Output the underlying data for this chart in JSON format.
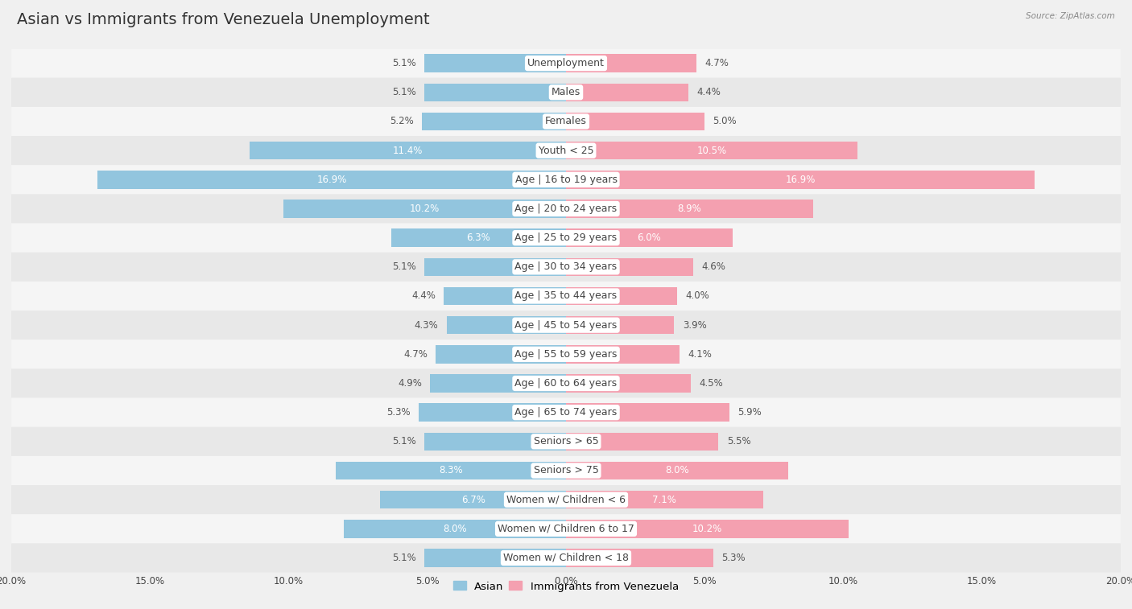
{
  "title": "Asian vs Immigrants from Venezuela Unemployment",
  "source": "Source: ZipAtlas.com",
  "categories": [
    "Unemployment",
    "Males",
    "Females",
    "Youth < 25",
    "Age | 16 to 19 years",
    "Age | 20 to 24 years",
    "Age | 25 to 29 years",
    "Age | 30 to 34 years",
    "Age | 35 to 44 years",
    "Age | 45 to 54 years",
    "Age | 55 to 59 years",
    "Age | 60 to 64 years",
    "Age | 65 to 74 years",
    "Seniors > 65",
    "Seniors > 75",
    "Women w/ Children < 6",
    "Women w/ Children 6 to 17",
    "Women w/ Children < 18"
  ],
  "asian_values": [
    5.1,
    5.1,
    5.2,
    11.4,
    16.9,
    10.2,
    6.3,
    5.1,
    4.4,
    4.3,
    4.7,
    4.9,
    5.3,
    5.1,
    8.3,
    6.7,
    8.0,
    5.1
  ],
  "venezuela_values": [
    4.7,
    4.4,
    5.0,
    10.5,
    16.9,
    8.9,
    6.0,
    4.6,
    4.0,
    3.9,
    4.1,
    4.5,
    5.9,
    5.5,
    8.0,
    7.1,
    10.2,
    5.3
  ],
  "asian_color": "#92c5de",
  "venezuela_color": "#f4a0b0",
  "axis_max": 20.0,
  "bg_row_even": "#f5f5f5",
  "bg_row_odd": "#e8e8e8",
  "outer_bg": "#f0f0f0",
  "label_color": "#444444",
  "value_color_dark": "#ffffff",
  "value_color_outside": "#555555",
  "title_fontsize": 14,
  "label_fontsize": 9,
  "value_fontsize": 8.5,
  "legend_asian": "Asian",
  "legend_venezuela": "Immigrants from Venezuela"
}
